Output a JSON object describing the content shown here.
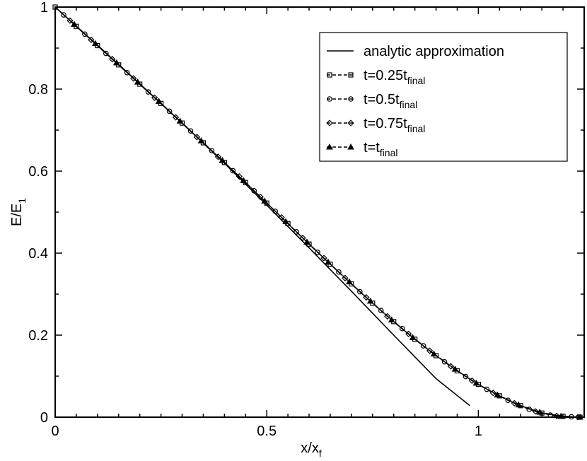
{
  "chart_data": {
    "type": "line",
    "xlabel": "x/x",
    "xlabel_sub": "f",
    "ylabel": "E/E",
    "ylabel_sub": "1",
    "xlim": [
      0,
      1.25
    ],
    "ylim": [
      0,
      1
    ],
    "x_ticks": [
      {
        "value": 0,
        "label": "0"
      },
      {
        "value": 0.5,
        "label": "0.5"
      },
      {
        "value": 1,
        "label": "1"
      }
    ],
    "y_ticks": [
      {
        "value": 0,
        "label": "0"
      },
      {
        "value": 0.2,
        "label": "0.2"
      },
      {
        "value": 0.4,
        "label": "0.4"
      },
      {
        "value": 0.6,
        "label": "0.6"
      },
      {
        "value": 0.8,
        "label": "0.8"
      },
      {
        "value": 1,
        "label": "1"
      }
    ],
    "grid": false,
    "legend_position": "top-right",
    "legend": [
      {
        "text": "analytic approximation",
        "sub": "",
        "style": "solid",
        "marker": "none"
      },
      {
        "text": "t=0.25t",
        "sub": "final",
        "style": "dashed",
        "marker": "square"
      },
      {
        "text": "t=0.5t",
        "sub": "final",
        "style": "dashed",
        "marker": "circle"
      },
      {
        "text": "t=0.75t",
        "sub": "final",
        "style": "dashed",
        "marker": "diamond"
      },
      {
        "text": "t=t",
        "sub": "final",
        "style": "dashed",
        "marker": "triangle"
      }
    ],
    "series": [
      {
        "name": "analytic approximation",
        "style": "solid",
        "marker": "none",
        "x": [
          0,
          0.1,
          0.2,
          0.3,
          0.4,
          0.5,
          0.6,
          0.7,
          0.8,
          0.9,
          0.98
        ],
        "y": [
          1.0,
          0.907,
          0.813,
          0.717,
          0.619,
          0.517,
          0.413,
          0.307,
          0.2,
          0.094,
          0.028
        ]
      },
      {
        "name": "t=0.25t_final",
        "style": "dashed",
        "marker": "square",
        "x": [
          0,
          0.05,
          0.1,
          0.15,
          0.2,
          0.25,
          0.3,
          0.35,
          0.4,
          0.45,
          0.5,
          0.55,
          0.6,
          0.65,
          0.7,
          0.75,
          0.8,
          0.85,
          0.9,
          0.95,
          1.0,
          1.05,
          1.1,
          1.15,
          1.2,
          1.24
        ],
        "y": [
          1.0,
          0.953,
          0.906,
          0.859,
          0.812,
          0.765,
          0.717,
          0.669,
          0.621,
          0.572,
          0.522,
          0.472,
          0.422,
          0.373,
          0.325,
          0.278,
          0.233,
          0.19,
          0.15,
          0.113,
          0.08,
          0.052,
          0.028,
          0.01,
          0.002,
          0.0
        ]
      },
      {
        "name": "t=0.5t_final",
        "style": "dashed",
        "marker": "circle",
        "x": [
          0.02,
          0.07,
          0.12,
          0.17,
          0.22,
          0.27,
          0.32,
          0.37,
          0.42,
          0.47,
          0.52,
          0.57,
          0.62,
          0.67,
          0.72,
          0.77,
          0.82,
          0.87,
          0.92,
          0.97,
          1.02,
          1.07,
          1.12,
          1.17,
          1.22
        ],
        "y": [
          0.981,
          0.934,
          0.887,
          0.84,
          0.793,
          0.746,
          0.698,
          0.65,
          0.601,
          0.552,
          0.502,
          0.452,
          0.402,
          0.354,
          0.306,
          0.26,
          0.216,
          0.174,
          0.135,
          0.099,
          0.068,
          0.041,
          0.019,
          0.005,
          0.001
        ]
      },
      {
        "name": "t=0.75t_final",
        "style": "dashed",
        "marker": "diamond",
        "x": [
          0.035,
          0.085,
          0.135,
          0.185,
          0.235,
          0.285,
          0.335,
          0.385,
          0.435,
          0.485,
          0.535,
          0.585,
          0.635,
          0.685,
          0.735,
          0.785,
          0.835,
          0.885,
          0.935,
          0.985,
          1.035,
          1.085,
          1.135,
          1.185,
          1.235
        ],
        "y": [
          0.967,
          0.92,
          0.873,
          0.826,
          0.779,
          0.731,
          0.683,
          0.635,
          0.587,
          0.537,
          0.487,
          0.437,
          0.388,
          0.339,
          0.292,
          0.246,
          0.203,
          0.162,
          0.124,
          0.089,
          0.059,
          0.034,
          0.014,
          0.003,
          0.0
        ]
      },
      {
        "name": "t=t_final",
        "style": "dashed",
        "marker": "triangle",
        "x": [
          0.045,
          0.095,
          0.145,
          0.195,
          0.245,
          0.295,
          0.345,
          0.395,
          0.445,
          0.495,
          0.545,
          0.595,
          0.645,
          0.695,
          0.745,
          0.795,
          0.845,
          0.895,
          0.945,
          0.995,
          1.045,
          1.095,
          1.145,
          1.195,
          1.24
        ],
        "y": [
          0.958,
          0.911,
          0.864,
          0.817,
          0.77,
          0.722,
          0.674,
          0.626,
          0.577,
          0.527,
          0.477,
          0.427,
          0.378,
          0.33,
          0.283,
          0.237,
          0.194,
          0.154,
          0.117,
          0.083,
          0.054,
          0.03,
          0.012,
          0.002,
          0.0
        ]
      }
    ]
  }
}
